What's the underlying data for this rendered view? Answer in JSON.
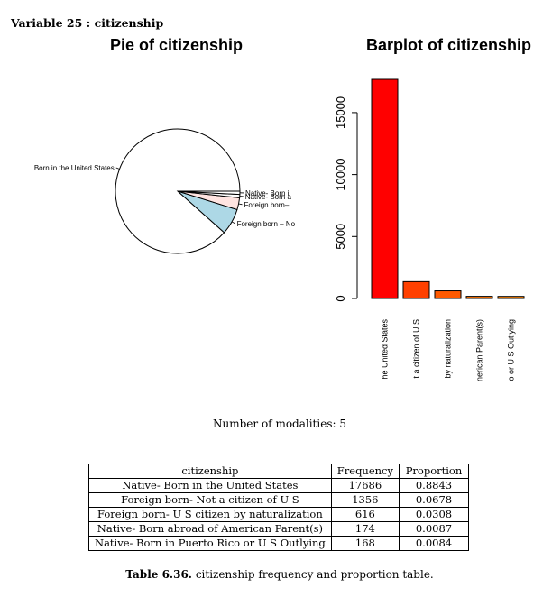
{
  "header": {
    "text": "Variable 25 :  citizenship"
  },
  "charts": {
    "pie_title": "Pie of citizenship",
    "bar_title": "Barplot of citizenship"
  },
  "chart_data": [
    {
      "type": "pie",
      "title": "Pie of citizenship",
      "categories": [
        "Native- Born in the United States",
        "Foreign born- Not a citizen of U S",
        "Foreign born- U S citizen by naturalization",
        "Native- Born abroad of American Parent(s)",
        "Native- Born in Puerto Rico or U S Outlying"
      ],
      "values": [
        17686,
        1356,
        616,
        174,
        168
      ],
      "slice_labels": [
        "Born in the United States",
        "Foreign born – No",
        "Foreign born–",
        "Native- Born a",
        "Native- Born i"
      ],
      "colors": [
        "#ffffff",
        "#add8e6",
        "#ffe4e1",
        "#ffffff",
        "#ffffff"
      ]
    },
    {
      "type": "bar",
      "title": "Barplot of citizenship",
      "categories": [
        "Native- Born in the United States",
        "Foreign born- Not a citizen of U S",
        "Foreign born- U S citizen by naturalization",
        "Native- Born abroad of American Parent(s)",
        "Native- Born in Puerto Rico or U S Outlying"
      ],
      "tick_labels": [
        "he United States",
        "t a citizen of U S",
        "by naturalization",
        "nerican Parent(s)",
        "o or U S Outlying"
      ],
      "values": [
        17686,
        1356,
        616,
        174,
        168
      ],
      "ylim": [
        0,
        17686
      ],
      "yticks": [
        0,
        5000,
        10000,
        15000
      ],
      "colors": [
        "#ff0000",
        "#ff4000",
        "#ff5a00",
        "#ff7300",
        "#ff8000"
      ]
    }
  ],
  "summary": {
    "modalities": "Number of modalities: 5"
  },
  "table": {
    "headers": [
      "citizenship",
      "Frequency",
      "Proportion"
    ],
    "rows": [
      [
        "Native- Born in the United States",
        "17686",
        "0.8843"
      ],
      [
        "Foreign born- Not a citizen of U S",
        "1356",
        "0.0678"
      ],
      [
        "Foreign born- U S citizen by naturalization",
        "616",
        "0.0308"
      ],
      [
        "Native- Born abroad of American Parent(s)",
        "174",
        "0.0087"
      ],
      [
        "Native- Born in Puerto Rico or U S Outlying",
        "168",
        "0.0084"
      ]
    ]
  },
  "caption": {
    "label": "Table 6.36.",
    "text": "citizenship frequency and proportion table."
  }
}
